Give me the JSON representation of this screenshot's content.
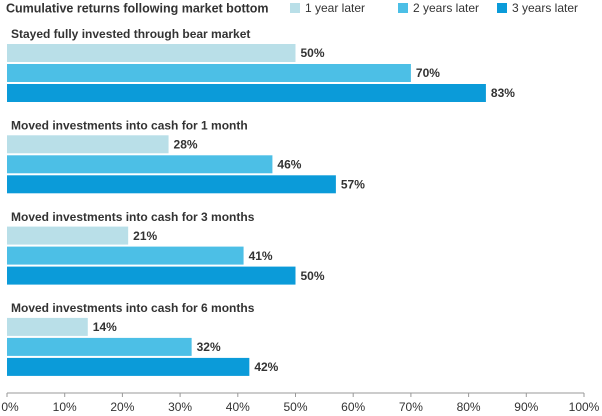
{
  "chart_data": {
    "type": "bar",
    "orientation": "horizontal",
    "title": "Cumulative returns following market bottom",
    "categories": [
      "Stayed fully invested through bear market",
      "Moved investments into cash for 1 month",
      "Moved investments into cash for 3 months",
      "Moved investments into cash for 6 months"
    ],
    "series": [
      {
        "name": "1 year later",
        "color": "#b9dfe8",
        "values": [
          50,
          28,
          21,
          14
        ],
        "value_labels": [
          "50%",
          "28%",
          "21%",
          "14%"
        ]
      },
      {
        "name": "2 years later",
        "color": "#4cbfe6",
        "values": [
          70,
          46,
          41,
          32
        ],
        "value_labels": [
          "70%",
          "46%",
          "41%",
          "32%"
        ]
      },
      {
        "name": "3 years later",
        "color": "#0b9bd9",
        "values": [
          83,
          57,
          50,
          42
        ],
        "value_labels": [
          "83%",
          "57%",
          "50%",
          "42%"
        ]
      }
    ],
    "xlim": [
      0,
      100
    ],
    "xticks": [
      {
        "value": 0,
        "label": "0%"
      },
      {
        "value": 10,
        "label": "10%"
      },
      {
        "value": 20,
        "label": "20%"
      },
      {
        "value": 30,
        "label": "30%"
      },
      {
        "value": 40,
        "label": "40%"
      },
      {
        "value": 50,
        "label": "50%"
      },
      {
        "value": 60,
        "label": "60%"
      },
      {
        "value": 70,
        "label": "70%"
      },
      {
        "value": 80,
        "label": "80%"
      },
      {
        "value": 90,
        "label": "90%"
      },
      {
        "value": 100,
        "label": "100%"
      }
    ],
    "legend": "top-right",
    "grid": false
  }
}
